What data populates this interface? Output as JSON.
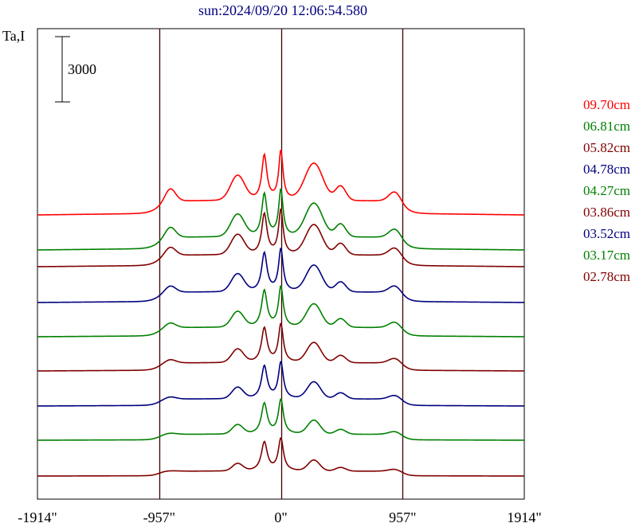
{
  "chart_data": {
    "type": "line",
    "title": "sun:2024/09/20 12:06:54.580",
    "ylabel": "Ta,I",
    "scale_bar_label": "3000",
    "scale_bar_value": 3000,
    "xlim": [
      -1914,
      1914
    ],
    "xticks": [
      {
        "value": -1914,
        "label": "-1914\""
      },
      {
        "value": -957,
        "label": "-957\""
      },
      {
        "value": 0,
        "label": "0\""
      },
      {
        "value": 957,
        "label": "957\""
      },
      {
        "value": 1914,
        "label": "1914\""
      }
    ],
    "vlines": [
      -957,
      0,
      957
    ],
    "series": [
      {
        "name": "09.70cm",
        "color": "#ff0000"
      },
      {
        "name": "06.81cm",
        "color": "#008000"
      },
      {
        "name": "05.82cm",
        "color": "#800000"
      },
      {
        "name": "04.78cm",
        "color": "#000080"
      },
      {
        "name": "04.27cm",
        "color": "#008000"
      },
      {
        "name": "03.86cm",
        "color": "#800000"
      },
      {
        "name": "03.52cm",
        "color": "#000080"
      },
      {
        "name": "03.17cm",
        "color": "#008000"
      },
      {
        "name": "02.78cm",
        "color": "#800000"
      }
    ]
  }
}
